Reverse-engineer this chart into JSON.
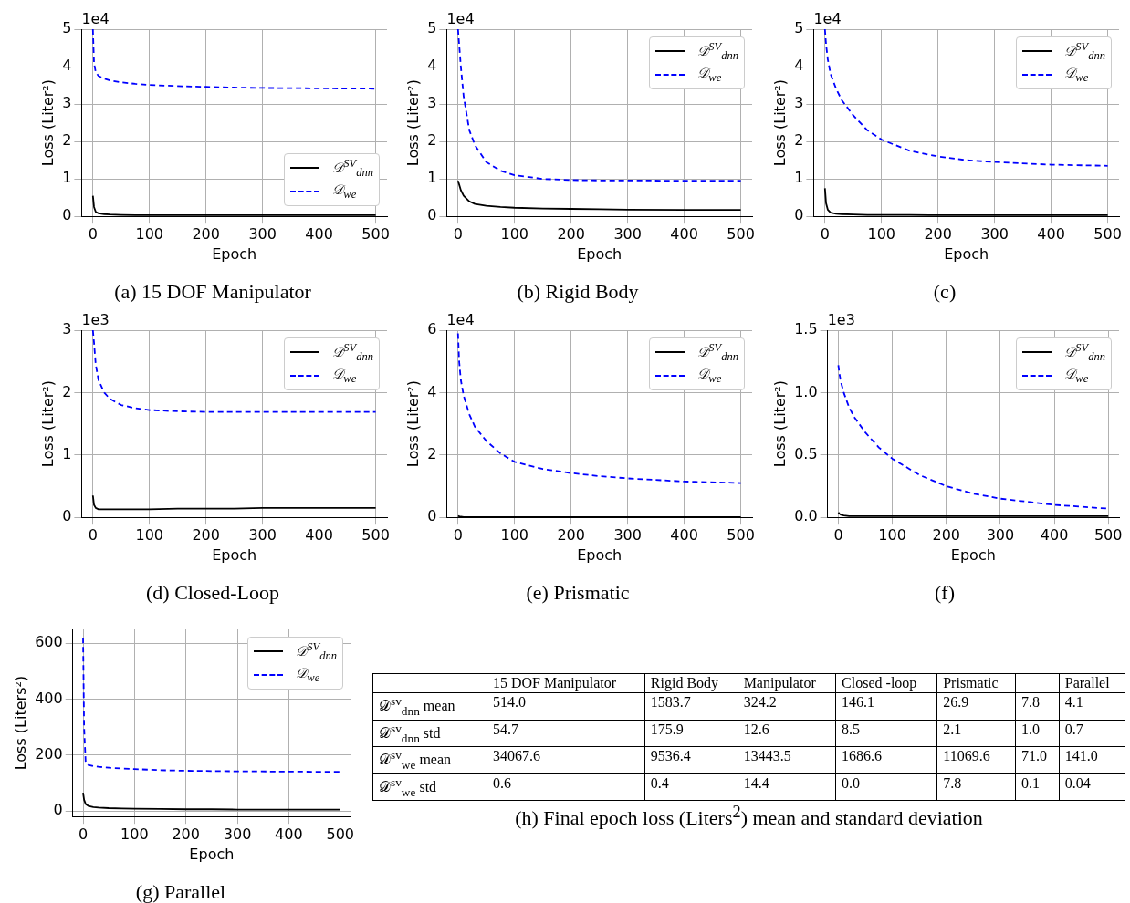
{
  "chart_data": [
    {
      "type": "line",
      "title": "(a) 15 DOF Manipulator",
      "xlabel": "Epoch",
      "ylabel": "Loss (Liter²)",
      "annotations": [
        "1e4"
      ],
      "x": [
        0,
        2,
        5,
        10,
        20,
        30,
        50,
        75,
        100,
        150,
        200,
        250,
        300,
        400,
        500
      ],
      "xlim": [
        -20,
        520
      ],
      "xticks": [
        0,
        100,
        200,
        300,
        400,
        500
      ],
      "ylim": [
        0,
        5
      ],
      "yticks": [
        0,
        1,
        2,
        3,
        4,
        5
      ],
      "grid": true,
      "legend": "bottom right",
      "series": [
        {
          "name": "𝒟$^{SV}$$_{dnn}$",
          "color": "#000000",
          "line_style": "solid",
          "values": [
            0.55,
            0.25,
            0.12,
            0.08,
            0.06,
            0.05,
            0.04,
            0.03,
            0.03,
            0.03,
            0.03,
            0.03,
            0.03,
            0.03,
            0.03
          ]
        },
        {
          "name": "𝒟$_{we}$",
          "color": "#0000ff",
          "line_style": "dashed",
          "values": [
            5,
            4.1,
            3.85,
            3.75,
            3.68,
            3.63,
            3.58,
            3.54,
            3.51,
            3.48,
            3.46,
            3.44,
            3.43,
            3.42,
            3.41
          ]
        }
      ]
    },
    {
      "type": "line",
      "title": "(b) Rigid Body",
      "xlabel": "Epoch",
      "ylabel": "Loss (Liter²)",
      "annotations": [
        "1e4"
      ],
      "x": [
        0,
        2,
        5,
        10,
        20,
        30,
        50,
        75,
        100,
        150,
        200,
        250,
        300,
        400,
        500
      ],
      "xlim": [
        -20,
        520
      ],
      "xticks": [
        0,
        100,
        200,
        300,
        400,
        500
      ],
      "ylim": [
        0,
        5
      ],
      "yticks": [
        0,
        1,
        2,
        3,
        4,
        5
      ],
      "grid": true,
      "legend": "top right",
      "series": [
        {
          "name": "𝒟$^{SV}$$_{dnn}$",
          "color": "#000000",
          "line_style": "solid",
          "values": [
            0.95,
            0.85,
            0.7,
            0.55,
            0.4,
            0.33,
            0.28,
            0.25,
            0.23,
            0.21,
            0.2,
            0.19,
            0.18,
            0.17,
            0.17
          ]
        },
        {
          "name": "𝒟$_{we}$",
          "color": "#0000ff",
          "line_style": "dashed",
          "values": [
            5,
            4.6,
            4.0,
            3.2,
            2.3,
            1.9,
            1.45,
            1.22,
            1.1,
            1.0,
            0.97,
            0.96,
            0.96,
            0.95,
            0.95
          ]
        }
      ]
    },
    {
      "type": "line",
      "title": "(c)",
      "xlabel": "Epoch",
      "ylabel": "Loss (Liter²)",
      "annotations": [
        "1e4"
      ],
      "x": [
        0,
        2,
        5,
        10,
        20,
        30,
        50,
        75,
        100,
        150,
        200,
        250,
        300,
        400,
        500
      ],
      "xlim": [
        -20,
        520
      ],
      "xticks": [
        0,
        100,
        200,
        300,
        400,
        500
      ],
      "ylim": [
        0,
        5
      ],
      "yticks": [
        0,
        1,
        2,
        3,
        4,
        5
      ],
      "grid": true,
      "legend": "top right",
      "series": [
        {
          "name": "𝒟$^{SV}$$_{dnn}$",
          "color": "#000000",
          "line_style": "solid",
          "values": [
            0.75,
            0.35,
            0.18,
            0.1,
            0.07,
            0.06,
            0.05,
            0.04,
            0.04,
            0.04,
            0.03,
            0.03,
            0.03,
            0.03,
            0.03
          ]
        },
        {
          "name": "𝒟$_{we}$",
          "color": "#0000ff",
          "line_style": "dashed",
          "values": [
            5,
            4.6,
            4.2,
            3.8,
            3.4,
            3.1,
            2.7,
            2.3,
            2.05,
            1.75,
            1.6,
            1.5,
            1.45,
            1.38,
            1.35
          ]
        }
      ]
    },
    {
      "type": "line",
      "title": "(d) Closed-Loop",
      "xlabel": "Epoch",
      "ylabel": "Loss (Liter²)",
      "annotations": [
        "1e3"
      ],
      "x": [
        0,
        2,
        5,
        10,
        20,
        30,
        50,
        75,
        100,
        150,
        200,
        250,
        300,
        400,
        500
      ],
      "xlim": [
        -20,
        520
      ],
      "xticks": [
        0,
        100,
        200,
        300,
        400,
        500
      ],
      "ylim": [
        0,
        3
      ],
      "yticks": [
        0,
        1,
        2,
        3
      ],
      "grid": true,
      "legend": "top right",
      "series": [
        {
          "name": "𝒟$^{SV}$$_{dnn}$",
          "color": "#000000",
          "line_style": "solid",
          "values": [
            0.35,
            0.2,
            0.15,
            0.13,
            0.13,
            0.13,
            0.13,
            0.13,
            0.13,
            0.14,
            0.14,
            0.14,
            0.15,
            0.15,
            0.15
          ]
        },
        {
          "name": "𝒟$_{we}$",
          "color": "#0000ff",
          "line_style": "dashed",
          "values": [
            3,
            2.8,
            2.45,
            2.2,
            2.0,
            1.9,
            1.8,
            1.75,
            1.72,
            1.7,
            1.69,
            1.69,
            1.69,
            1.69,
            1.69
          ]
        }
      ]
    },
    {
      "type": "line",
      "title": "(e) Prismatic",
      "xlabel": "Epoch",
      "ylabel": "Loss (Liter²)",
      "annotations": [
        "1e4"
      ],
      "x": [
        0,
        2,
        5,
        10,
        20,
        30,
        50,
        75,
        100,
        150,
        200,
        250,
        300,
        400,
        500
      ],
      "xlim": [
        -20,
        520
      ],
      "xticks": [
        0,
        100,
        200,
        300,
        400,
        500
      ],
      "ylim": [
        0,
        6
      ],
      "yticks": [
        0,
        2,
        4,
        6
      ],
      "grid": true,
      "legend": "top right",
      "series": [
        {
          "name": "𝒟$^{SV}$$_{dnn}$",
          "color": "#000000",
          "line_style": "solid",
          "values": [
            0.05,
            0.03,
            0.02,
            0.01,
            0.01,
            0.01,
            0.01,
            0.01,
            0.01,
            0.01,
            0.01,
            0.01,
            0.01,
            0.01,
            0.01
          ]
        },
        {
          "name": "𝒟$_{we}$",
          "color": "#0000ff",
          "line_style": "dashed",
          "values": [
            5.9,
            5.0,
            4.4,
            3.9,
            3.3,
            2.9,
            2.45,
            2.05,
            1.78,
            1.55,
            1.42,
            1.32,
            1.25,
            1.15,
            1.1
          ]
        }
      ]
    },
    {
      "type": "line",
      "title": "(f)",
      "xlabel": "Epoch",
      "ylabel": "Loss (Liter²)",
      "annotations": [
        "1e3"
      ],
      "x": [
        0,
        2,
        5,
        10,
        20,
        30,
        50,
        75,
        100,
        150,
        200,
        250,
        300,
        400,
        500
      ],
      "xlim": [
        -20,
        520
      ],
      "xticks": [
        0,
        100,
        200,
        300,
        400,
        500
      ],
      "ylim": [
        0,
        1.5
      ],
      "yticks": [
        {
          "value": 0,
          "label": "0.0"
        },
        0.5,
        {
          "value": 1,
          "label": "1.0"
        },
        1.5
      ],
      "grid": true,
      "legend": "top right",
      "series": [
        {
          "name": "𝒟$^{SV}$$_{dnn}$",
          "color": "#000000",
          "line_style": "solid",
          "values": [
            0.04,
            0.03,
            0.02,
            0.015,
            0.01,
            0.01,
            0.01,
            0.01,
            0.01,
            0.01,
            0.01,
            0.01,
            0.01,
            0.01,
            0.01
          ]
        },
        {
          "name": "𝒟$_{we}$",
          "color": "#0000ff",
          "line_style": "dashed",
          "values": [
            1.22,
            1.15,
            1.08,
            1.0,
            0.88,
            0.8,
            0.68,
            0.56,
            0.47,
            0.34,
            0.25,
            0.19,
            0.15,
            0.1,
            0.07
          ]
        }
      ]
    },
    {
      "type": "line",
      "title": "(g) Parallel",
      "xlabel": "Epoch",
      "ylabel": "Loss (Liters²)",
      "x": [
        0,
        2,
        5,
        10,
        20,
        30,
        50,
        75,
        100,
        150,
        200,
        250,
        300,
        400,
        500
      ],
      "xlim": [
        -20,
        520
      ],
      "xticks": [
        0,
        100,
        200,
        300,
        400,
        500
      ],
      "ylim": [
        -20,
        650
      ],
      "yticks": [
        0,
        200,
        400,
        600
      ],
      "grid": true,
      "legend": "top right",
      "series": [
        {
          "name": "𝒟$^{SV}$$_{dnn}$",
          "color": "#000000",
          "line_style": "solid",
          "values": [
            65,
            40,
            25,
            18,
            14,
            12,
            10,
            9,
            8,
            7,
            6,
            6,
            5,
            5,
            5
          ]
        },
        {
          "name": "𝒟$_{we}$",
          "color": "#0000ff",
          "line_style": "dashed",
          "values": [
            620,
            300,
            175,
            165,
            160,
            158,
            155,
            152,
            150,
            146,
            144,
            143,
            142,
            141,
            140
          ]
        }
      ]
    },
    {
      "type": "other",
      "title": "(h) Final epoch loss (Liters$^{2}$) mean and standard deviation",
      "categories": [
        "15 DOF Manipulator",
        "Rigid Body",
        "Manipulator",
        "Closed -loop",
        "Prismatic",
        null,
        "Parallel"
      ],
      "y_categories": [
        "𝒟$^{sv}$$_{dnn}$ mean",
        "𝒟$^{sv}$$_{dnn}$ std",
        "𝒟$^{sv}$$_{we}$ mean",
        "𝒟$^{sv}$$_{we}$ std"
      ],
      "cell_labels": [
        [
          "514.0",
          "1583.7",
          "324.2",
          "146.1",
          "26.9",
          "7.8",
          "4.1"
        ],
        [
          "54.7",
          "175.9",
          "12.6",
          "8.5",
          "2.1",
          "1.0",
          "0.7"
        ],
        [
          "34067.6",
          "9536.4",
          "13443.5",
          "1686.6",
          "11069.6",
          "71.0",
          "141.0"
        ],
        [
          "0.6",
          "0.4",
          "14.4",
          "0.0",
          "7.8",
          "0.1",
          "0.04"
        ]
      ]
    }
  ]
}
